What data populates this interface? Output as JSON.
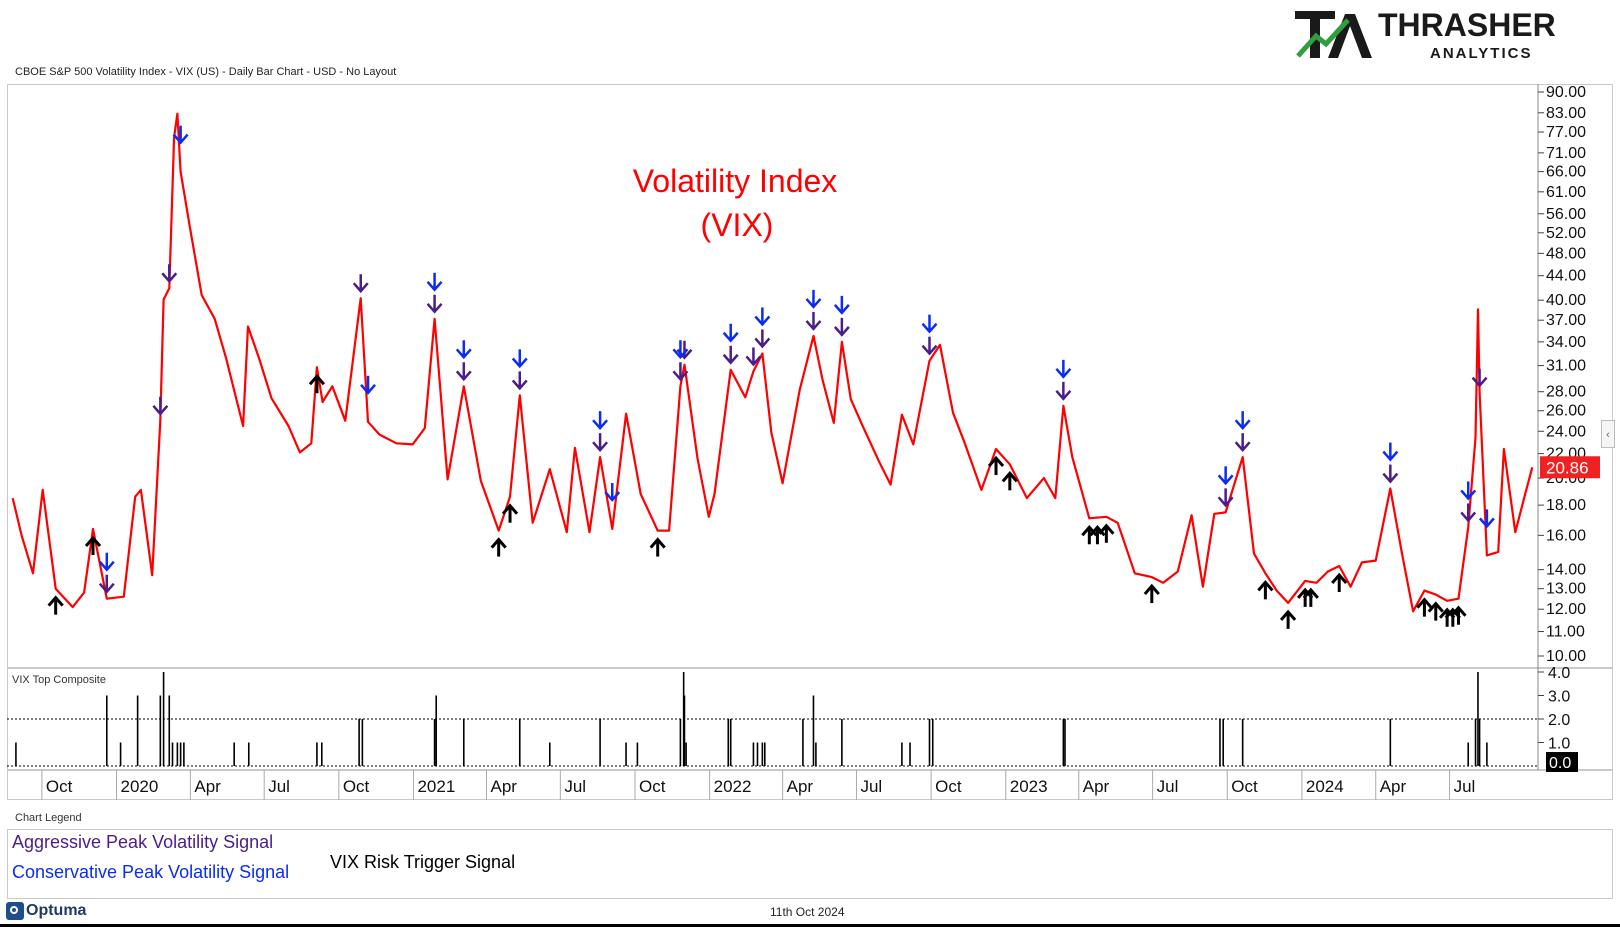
{
  "logo": {
    "line1": "THRASHER",
    "line2": "ANALYTICS",
    "colors": {
      "dark": "#1a1a1a",
      "green": "#2e9e3f"
    }
  },
  "header": {
    "title": "CBOE S&P 500 Volatility Index - VIX (US) - Daily Bar Chart - USD - No Layout"
  },
  "chart_data": {
    "type": "line",
    "title_line1": "Volatility Index",
    "title_line2": "(VIX)",
    "scale": "log",
    "ylim": [
      10,
      90
    ],
    "y_ticks": [
      "90.00",
      "83.00",
      "77.00",
      "71.00",
      "66.00",
      "61.00",
      "56.00",
      "52.00",
      "48.00",
      "44.00",
      "40.00",
      "37.00",
      "34.00",
      "31.00",
      "28.00",
      "26.00",
      "24.00",
      "22.00",
      "20.00",
      "18.00",
      "16.00",
      "14.00",
      "13.00",
      "12.00",
      "11.00",
      "10.00"
    ],
    "x_ticks": [
      "Oct",
      "2020",
      "Apr",
      "Jul",
      "Oct",
      "2021",
      "Apr",
      "Jul",
      "Oct",
      "2022",
      "Apr",
      "Jul",
      "Oct",
      "2023",
      "Apr",
      "Jul",
      "Oct",
      "2024",
      "Apr",
      "Jul"
    ],
    "last_value_label": "20.86",
    "line_color": "#ff0000",
    "series": [
      {
        "x": [
          "2019-08-26",
          "2019-09-06",
          "2019-09-20",
          "2019-10-02",
          "2019-10-18",
          "2019-11-08",
          "2019-11-22",
          "2019-12-03",
          "2019-12-20",
          "2020-01-10",
          "2020-01-24",
          "2020-01-31",
          "2020-02-14",
          "2020-02-24",
          "2020-02-28",
          "2020-03-06",
          "2020-03-12",
          "2020-03-16",
          "2020-03-20",
          "2020-03-31",
          "2020-04-15",
          "2020-05-01",
          "2020-05-15",
          "2020-06-05",
          "2020-06-11",
          "2020-06-25",
          "2020-07-10",
          "2020-07-31",
          "2020-08-14",
          "2020-08-28",
          "2020-09-04",
          "2020-09-11",
          "2020-09-23",
          "2020-10-09",
          "2020-10-28",
          "2020-11-06",
          "2020-11-20",
          "2020-12-11",
          "2020-12-31",
          "2021-01-15",
          "2021-01-27",
          "2021-02-12",
          "2021-03-04",
          "2021-03-25",
          "2021-04-16",
          "2021-04-30",
          "2021-05-12",
          "2021-05-28",
          "2021-06-18",
          "2021-07-09",
          "2021-07-19",
          "2021-08-06",
          "2021-08-19",
          "2021-09-03",
          "2021-09-20",
          "2021-10-08",
          "2021-10-29",
          "2021-11-12",
          "2021-11-26",
          "2021-12-01",
          "2021-12-17",
          "2021-12-31",
          "2022-01-07",
          "2022-01-27",
          "2022-02-14",
          "2022-02-24",
          "2022-03-07",
          "2022-03-18",
          "2022-04-01",
          "2022-04-22",
          "2022-05-09",
          "2022-05-20",
          "2022-06-03",
          "2022-06-13",
          "2022-06-24",
          "2022-07-08",
          "2022-07-29",
          "2022-08-12",
          "2022-08-26",
          "2022-09-09",
          "2022-09-29",
          "2022-10-12",
          "2022-10-28",
          "2022-11-11",
          "2022-12-02",
          "2022-12-20",
          "2023-01-06",
          "2023-01-27",
          "2023-02-17",
          "2023-03-03",
          "2023-03-13",
          "2023-03-24",
          "2023-04-14",
          "2023-05-05",
          "2023-05-19",
          "2023-06-09",
          "2023-06-30",
          "2023-07-14",
          "2023-08-01",
          "2023-08-18",
          "2023-09-01",
          "2023-09-15",
          "2023-09-29",
          "2023-10-20",
          "2023-11-03",
          "2023-11-17",
          "2023-12-01",
          "2023-12-15",
          "2024-01-05",
          "2024-01-19",
          "2024-02-02",
          "2024-02-16",
          "2024-03-01",
          "2024-03-15",
          "2024-04-01",
          "2024-04-19",
          "2024-05-03",
          "2024-05-17",
          "2024-05-31",
          "2024-06-14",
          "2024-06-28",
          "2024-07-12",
          "2024-07-24",
          "2024-08-02",
          "2024-08-05",
          "2024-08-07",
          "2024-08-16",
          "2024-08-30",
          "2024-09-06",
          "2024-09-20",
          "2024-10-04",
          "2024-10-11"
        ],
        "values": [
          18.5,
          16.0,
          13.8,
          19.1,
          13.0,
          12.1,
          12.8,
          16.4,
          12.5,
          12.6,
          18.6,
          19.1,
          13.7,
          25.0,
          40.1,
          41.9,
          75.5,
          82.7,
          66.0,
          53.5,
          40.8,
          37.2,
          31.9,
          24.5,
          36.1,
          31.8,
          27.3,
          24.5,
          22.1,
          22.9,
          30.8,
          26.9,
          28.6,
          25.0,
          40.3,
          24.9,
          23.7,
          22.9,
          22.8,
          24.3,
          37.2,
          19.9,
          28.6,
          19.8,
          16.3,
          18.6,
          27.6,
          16.8,
          20.7,
          16.2,
          22.5,
          16.2,
          21.7,
          16.4,
          25.7,
          18.8,
          16.3,
          16.3,
          28.6,
          31.1,
          21.6,
          17.2,
          18.8,
          30.5,
          27.4,
          30.3,
          32.5,
          23.9,
          19.6,
          28.2,
          34.8,
          29.4,
          24.8,
          34.0,
          27.2,
          24.6,
          21.3,
          19.5,
          25.6,
          22.8,
          31.6,
          33.6,
          25.8,
          23.0,
          19.1,
          22.4,
          21.1,
          18.5,
          20.0,
          18.5,
          26.5,
          21.7,
          17.1,
          17.2,
          16.8,
          13.8,
          13.6,
          13.3,
          13.9,
          17.3,
          13.1,
          17.4,
          17.5,
          21.7,
          14.9,
          13.8,
          12.9,
          12.3,
          13.4,
          13.3,
          13.9,
          14.2,
          13.1,
          14.4,
          14.5,
          19.2,
          15.0,
          11.9,
          12.9,
          12.7,
          12.4,
          12.5,
          16.5,
          23.4,
          38.6,
          27.9,
          14.8,
          15.0,
          22.4,
          16.2,
          19.2,
          20.86
        ]
      }
    ],
    "signals": {
      "aggressive_color": "#4b1d8c",
      "conservative_color": "#0a2cf5",
      "risk_color": "#000000",
      "aggressive_peak": [
        "2019-12-20",
        "2020-02-24",
        "2020-03-06",
        "2020-10-28",
        "2021-01-27",
        "2021-03-04",
        "2021-05-12",
        "2021-08-19",
        "2021-11-26",
        "2021-12-01",
        "2022-01-27",
        "2022-02-24",
        "2022-03-07",
        "2022-05-09",
        "2022-06-13",
        "2022-09-29",
        "2023-03-13",
        "2023-09-29",
        "2023-10-20",
        "2024-04-19",
        "2024-07-24",
        "2024-08-07"
      ],
      "conservative_peak": [
        "2019-12-20",
        "2020-03-20",
        "2020-11-06",
        "2021-01-27",
        "2021-03-04",
        "2021-05-12",
        "2021-08-19",
        "2021-09-03",
        "2021-11-26",
        "2022-01-27",
        "2022-03-07",
        "2022-05-09",
        "2022-06-13",
        "2022-09-29",
        "2023-03-13",
        "2023-09-29",
        "2023-10-20",
        "2024-04-19",
        "2024-07-24",
        "2024-08-16"
      ],
      "risk_trigger": [
        "2019-10-18",
        "2019-12-03",
        "2020-09-04",
        "2021-04-16",
        "2021-04-30",
        "2021-10-29",
        "2022-12-20",
        "2023-01-06",
        "2023-04-14",
        "2023-04-24",
        "2023-05-05",
        "2023-06-30",
        "2023-11-17",
        "2023-12-15",
        "2024-01-05",
        "2024-01-12",
        "2024-02-16",
        "2024-05-31",
        "2024-06-14",
        "2024-06-28",
        "2024-07-05",
        "2024-07-12"
      ]
    },
    "composite": {
      "label": "VIX Top Composite",
      "ylim": [
        0,
        4
      ],
      "y_ticks": [
        "4.0",
        "3.0",
        "2.0",
        "1.0"
      ],
      "threshold": 2.0,
      "last_value_label": "0.0",
      "spikes": [
        {
          "x": "2019-08-30",
          "v": 1
        },
        {
          "x": "2019-12-20",
          "v": 3
        },
        {
          "x": "2020-01-06",
          "v": 1
        },
        {
          "x": "2020-01-27",
          "v": 3
        },
        {
          "x": "2020-02-24",
          "v": 3
        },
        {
          "x": "2020-02-28",
          "v": 4
        },
        {
          "x": "2020-03-06",
          "v": 3
        },
        {
          "x": "2020-03-10",
          "v": 1
        },
        {
          "x": "2020-03-16",
          "v": 1
        },
        {
          "x": "2020-03-20",
          "v": 1
        },
        {
          "x": "2020-03-24",
          "v": 1
        },
        {
          "x": "2020-05-25",
          "v": 1
        },
        {
          "x": "2020-06-12",
          "v": 1
        },
        {
          "x": "2020-09-04",
          "v": 1
        },
        {
          "x": "2020-09-10",
          "v": 1
        },
        {
          "x": "2020-10-26",
          "v": 2
        },
        {
          "x": "2020-10-30",
          "v": 2
        },
        {
          "x": "2021-01-27",
          "v": 2
        },
        {
          "x": "2021-01-29",
          "v": 3
        },
        {
          "x": "2021-03-04",
          "v": 2
        },
        {
          "x": "2021-05-12",
          "v": 2
        },
        {
          "x": "2021-06-18",
          "v": 1
        },
        {
          "x": "2021-08-19",
          "v": 2
        },
        {
          "x": "2021-09-20",
          "v": 1
        },
        {
          "x": "2021-10-04",
          "v": 1
        },
        {
          "x": "2021-11-26",
          "v": 2
        },
        {
          "x": "2021-11-30",
          "v": 4
        },
        {
          "x": "2021-12-01",
          "v": 3
        },
        {
          "x": "2021-12-03",
          "v": 1
        },
        {
          "x": "2022-01-24",
          "v": 2
        },
        {
          "x": "2022-01-27",
          "v": 2
        },
        {
          "x": "2022-02-24",
          "v": 1
        },
        {
          "x": "2022-03-01",
          "v": 1
        },
        {
          "x": "2022-03-07",
          "v": 1
        },
        {
          "x": "2022-03-10",
          "v": 1
        },
        {
          "x": "2022-04-26",
          "v": 2
        },
        {
          "x": "2022-05-09",
          "v": 3
        },
        {
          "x": "2022-05-12",
          "v": 1
        },
        {
          "x": "2022-06-13",
          "v": 2
        },
        {
          "x": "2022-08-26",
          "v": 1
        },
        {
          "x": "2022-09-05",
          "v": 1
        },
        {
          "x": "2022-09-29",
          "v": 2
        },
        {
          "x": "2022-10-03",
          "v": 2
        },
        {
          "x": "2023-03-13",
          "v": 2
        },
        {
          "x": "2023-03-15",
          "v": 2
        },
        {
          "x": "2023-09-22",
          "v": 2
        },
        {
          "x": "2023-09-26",
          "v": 2
        },
        {
          "x": "2023-10-20",
          "v": 2
        },
        {
          "x": "2024-04-19",
          "v": 2
        },
        {
          "x": "2024-07-24",
          "v": 1
        },
        {
          "x": "2024-08-02",
          "v": 2
        },
        {
          "x": "2024-08-05",
          "v": 4
        },
        {
          "x": "2024-08-07",
          "v": 2
        },
        {
          "x": "2024-08-16",
          "v": 1
        }
      ]
    }
  },
  "legend": {
    "heading": "Chart Legend",
    "aggressive": "Aggressive Peak Volatility Signal",
    "conservative": "Conservative Peak Volatility Signal",
    "risk": "VIX Risk Trigger Signal"
  },
  "footer": {
    "brand": "Optuma",
    "date": "11th Oct 2024"
  }
}
